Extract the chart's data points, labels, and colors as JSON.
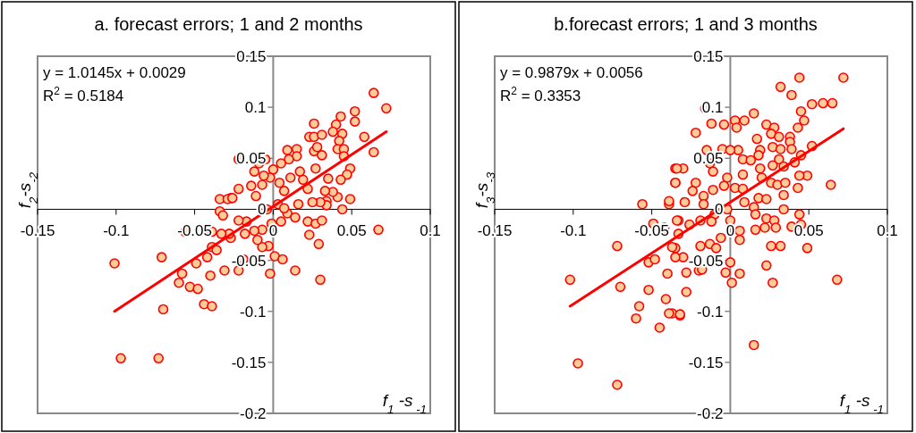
{
  "chart_data": [
    {
      "type": "scatter",
      "title": "a. forecast errors; 1 and 2 months",
      "xlabel": "f$_{1}$ -s$_{ -1}$",
      "ylabel": "f$_{2}$-s$_{-2}$",
      "xlim": [
        -0.15,
        0.1
      ],
      "ylim": [
        -0.2,
        0.15
      ],
      "xticks": [
        -0.15,
        -0.1,
        -0.05,
        0,
        0.05,
        0.1
      ],
      "yticks": [
        -0.2,
        -0.15,
        -0.1,
        -0.05,
        0,
        0.05,
        0.1,
        0.15
      ],
      "annotations": [
        "y = 1.0145x + 0.0029",
        "R$^{2}$ = 0.5184"
      ],
      "series": [
        {
          "marker": "circle",
          "color": "#ff0000",
          "x": [
            0.064,
            0.072,
            0.052,
            0.052,
            0.043,
            0.026,
            0.04,
            0.058,
            0.064,
            0.023,
            0.026,
            0.031,
            0.038,
            0.044,
            0.042,
            0.041,
            0.045,
            0.045,
            0.009,
            0.015,
            0.015,
            0.01,
            0.026,
            0.031,
            0.028,
            0.049,
            0.047,
            0.043,
            0.041,
            0.044,
            0.049,
            0.034,
            0.034,
            0.03,
            0.025,
            0.016,
            0.022,
            0.027,
            0.035,
            0.038,
            0.033,
            0.019,
            0.011,
            0.017,
            0.004,
            0.007,
            0.0,
            0.005,
            -0.002,
            -0.006,
            0.009,
            0.014,
            0.022,
            0.027,
            0.031,
            0.023,
            0.029,
            0.03,
            0.014,
            -0.002,
            0.001,
            0.006,
            0.067,
            -0.001,
            0.005,
            -0.007,
            -0.003,
            -0.007,
            -0.01,
            -0.012,
            -0.017,
            -0.022,
            -0.022,
            -0.011,
            -0.014,
            -0.007,
            -0.005,
            -0.009,
            -0.012,
            -0.022,
            -0.019,
            -0.027,
            -0.027,
            -0.018,
            0.003,
            -0.004,
            0.007,
            -0.022,
            -0.101,
            -0.071,
            -0.097,
            -0.073,
            -0.07,
            -0.056,
            -0.058,
            -0.06,
            -0.053,
            -0.048,
            -0.049,
            -0.044,
            -0.039,
            -0.04,
            -0.042,
            -0.039,
            -0.039,
            -0.031,
            -0.034,
            -0.034,
            -0.032,
            -0.029,
            -0.026,
            -0.028,
            -0.033,
            -0.036
          ],
          "values": [
            0.114,
            0.099,
            0.096,
            0.086,
            0.091,
            0.084,
            0.083,
            0.071,
            0.056,
            0.071,
            0.071,
            0.073,
            0.076,
            0.074,
            0.067,
            0.059,
            0.059,
            0.052,
            0.058,
            0.059,
            0.052,
            0.049,
            0.057,
            0.053,
            0.061,
            0.04,
            0.034,
            0.029,
            0.012,
            0.0,
            0.01,
            0.008,
            0.004,
            0.007,
            0.007,
            0.005,
            0.02,
            0.04,
            0.03,
            0.017,
            0.018,
            0.029,
            0.031,
            0.037,
            0.026,
            0.018,
            0.039,
            0.045,
            0.031,
            0.033,
            -0.004,
            -0.008,
            -0.012,
            -0.014,
            -0.011,
            -0.025,
            -0.034,
            -0.069,
            -0.06,
            -0.063,
            -0.046,
            -0.049,
            -0.02,
            -0.014,
            -0.012,
            -0.02,
            -0.036,
            -0.037,
            -0.03,
            -0.021,
            -0.012,
            -0.011,
            0.02,
            0.013,
            0.023,
            0.024,
            0.049,
            0.045,
            0.037,
            -0.06,
            -0.049,
            0.011,
            -0.028,
            -0.024,
            0.005,
            0.0,
            0.001,
            0.049,
            -0.053,
            -0.047,
            -0.146,
            -0.146,
            -0.098,
            -0.022,
            -0.063,
            -0.072,
            -0.076,
            -0.078,
            -0.053,
            -0.093,
            -0.095,
            -0.065,
            -0.047,
            -0.037,
            -0.022,
            -0.06,
            0.01,
            -0.002,
            -0.006,
            0.01,
            0.011,
            -0.024,
            -0.024,
            -0.04
          ]
        },
        {
          "type": "line",
          "marker": "none",
          "color": "#ff0000",
          "x": [
            -0.101,
            0.072
          ],
          "values": [
            -0.1,
            0.076
          ]
        }
      ]
    },
    {
      "type": "scatter",
      "title": "b.forecast errors; 1 and 3 months",
      "xlabel": "f$_{1}$ -s$_{ -1}$",
      "ylabel": "f$_{3}$-s$_{-3}$",
      "xlim": [
        -0.15,
        0.1
      ],
      "ylim": [
        -0.2,
        0.15
      ],
      "xticks": [
        -0.15,
        -0.1,
        -0.05,
        0,
        0.05,
        0.1
      ],
      "yticks": [
        -0.2,
        -0.15,
        -0.1,
        -0.05,
        0,
        0.05,
        0.1,
        0.15
      ],
      "annotations": [
        "y = 0.9879x + 0.0056",
        "R$^{2}$ = 0.3353"
      ],
      "series": [
        {
          "marker": "circle",
          "color": "#ff0000",
          "x": [
            0.044,
            0.072,
            0.032,
            0.039,
            0.052,
            0.059,
            0.065,
            0.045,
            0.047,
            0.043,
            -0.016,
            -0.012,
            -0.004,
            0.003,
            0.009,
            0.015,
            0.004,
            -0.022,
            0.023,
            0.028,
            0.017,
            0.026,
            0.031,
            0.038,
            0.038,
            0.019,
            0.027,
            0.032,
            0.039,
            0.052,
            0.045,
            -0.005,
            0.005,
            0.0,
            -0.015,
            -0.013,
            0.008,
            0.013,
            0.018,
            0.031,
            0.041,
            0.034,
            0.027,
            0.019,
            0.02,
            0.008,
            -0.002,
            -0.011,
            -0.022,
            -0.024,
            -0.017,
            -0.011,
            -0.004,
            0.003,
            0.008,
            0.009,
            0.018,
            0.023,
            0.026,
            0.03,
            0.035,
            0.043,
            0.049,
            0.044,
            0.034,
            0.034,
            0.064,
            -0.029,
            -0.017,
            -0.01,
            -0.002,
            0.015,
            0.016,
            0.023,
            0.028,
            0.044,
            0.039,
            0.045,
            -0.019,
            -0.026,
            -0.033,
            -0.012,
            0.0,
            0.006,
            0.016,
            0.022,
            0.029,
            0.026,
            0.032,
            0.049,
            0.006,
            -0.006,
            -0.013,
            -0.019,
            -0.009,
            0.0,
            0.006,
            -0.003,
            0.001,
            0.023,
            0.027,
            0.068,
            0.015,
            -0.02,
            -0.018,
            -0.028,
            -0.028,
            -0.032,
            -0.037,
            -0.035,
            -0.03,
            -0.033,
            -0.035,
            -0.03,
            -0.035,
            -0.102,
            -0.097,
            -0.072,
            -0.072,
            -0.07,
            -0.056,
            -0.049,
            -0.042,
            -0.052,
            -0.048,
            -0.052,
            -0.058,
            -0.06,
            -0.045,
            -0.041,
            -0.039,
            -0.032,
            -0.04,
            -0.035,
            -0.037,
            -0.034,
            -0.039,
            -0.039,
            -0.035,
            -0.034
          ],
          "values": [
            0.129,
            0.129,
            0.12,
            0.112,
            0.103,
            0.104,
            0.104,
            0.096,
            0.087,
            0.08,
            0.099,
            0.084,
            0.083,
            0.087,
            0.087,
            0.094,
            0.08,
            0.075,
            0.083,
            0.08,
            0.069,
            0.074,
            0.071,
            0.071,
            0.066,
            0.058,
            0.061,
            0.059,
            0.059,
            0.062,
            0.053,
            0.059,
            0.058,
            0.058,
            0.058,
            0.045,
            0.049,
            0.048,
            0.053,
            0.049,
            0.046,
            0.042,
            0.043,
            0.04,
            0.031,
            0.034,
            0.031,
            0.037,
            0.026,
            0.018,
            0.013,
            0.019,
            0.023,
            0.021,
            0.02,
            0.007,
            0.011,
            0.01,
            0.026,
            0.024,
            0.026,
            0.021,
            0.033,
            0.033,
            0.014,
            0.0,
            0.024,
            0.007,
            0.005,
            -0.005,
            0.0,
            0.002,
            -0.005,
            -0.009,
            -0.011,
            -0.005,
            -0.017,
            -0.015,
            -0.011,
            -0.015,
            -0.011,
            -0.012,
            -0.011,
            -0.021,
            -0.02,
            -0.018,
            -0.018,
            -0.036,
            -0.036,
            -0.038,
            -0.03,
            -0.028,
            -0.034,
            -0.036,
            -0.038,
            -0.052,
            -0.063,
            -0.062,
            -0.072,
            -0.055,
            -0.072,
            -0.069,
            -0.133,
            -0.06,
            -0.059,
            -0.062,
            -0.081,
            -0.104,
            -0.102,
            -0.038,
            -0.047,
            -0.024,
            0.04,
            0.04,
            0.026,
            -0.069,
            -0.151,
            -0.172,
            -0.036,
            -0.076,
            0.005,
            -0.014,
            -0.018,
            -0.052,
            -0.049,
            -0.079,
            -0.095,
            -0.107,
            -0.116,
            -0.088,
            -0.102,
            -0.103,
            -0.063,
            -0.047,
            -0.037,
            -0.011,
            0.005,
            0.008,
            0.026,
            0.04
          ]
        },
        {
          "type": "line",
          "marker": "none",
          "color": "#ff0000",
          "x": [
            -0.102,
            0.072
          ],
          "values": [
            -0.095,
            0.079
          ]
        }
      ]
    }
  ]
}
